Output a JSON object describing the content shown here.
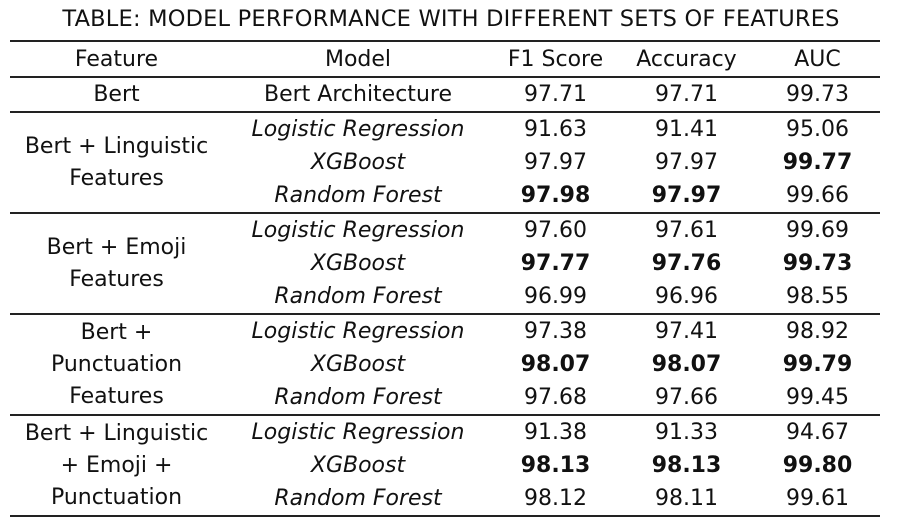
{
  "caption": "TABLE: MODEL PERFORMANCE WITH DIFFERENT SETS OF FEATURES",
  "headers": [
    "Feature",
    "Model",
    "F1 Score",
    "Accuracy",
    "AUC"
  ],
  "groups": [
    {
      "feature": "Bert",
      "rows": [
        {
          "model": "Bert Architecture",
          "f1": "97.71",
          "accuracy": "97.71",
          "auc": "99.73"
        }
      ]
    },
    {
      "feature": "Bert + Linguistic\nFeatures",
      "rows": [
        {
          "model": "Logistic Regression",
          "f1": "91.63",
          "accuracy": "91.41",
          "auc": "95.06"
        },
        {
          "model": "XGBoost",
          "f1": "97.97",
          "accuracy": "97.97",
          "auc": "99.77"
        },
        {
          "model": "Random Forest",
          "f1": "97.98",
          "accuracy": "97.97",
          "auc": "99.66"
        }
      ]
    },
    {
      "feature": "Bert + Emoji\nFeatures",
      "rows": [
        {
          "model": "Logistic Regression",
          "f1": "97.60",
          "accuracy": "97.61",
          "auc": "99.69"
        },
        {
          "model": "XGBoost",
          "f1": "97.77",
          "accuracy": "97.76",
          "auc": "99.73"
        },
        {
          "model": "Random Forest",
          "f1": "96.99",
          "accuracy": "96.96",
          "auc": "98.55"
        }
      ]
    },
    {
      "feature": "Bert +\nPunctuation\nFeatures",
      "rows": [
        {
          "model": "Logistic Regression",
          "f1": "97.38",
          "accuracy": "97.41",
          "auc": "98.92"
        },
        {
          "model": "XGBoost",
          "f1": "98.07",
          "accuracy": "98.07",
          "auc": "99.79"
        },
        {
          "model": "Random Forest",
          "f1": "97.68",
          "accuracy": "97.66",
          "auc": "99.45"
        }
      ]
    },
    {
      "feature": "Bert + Linguistic\n+ Emoji +\nPunctuation",
      "rows": [
        {
          "model": "Logistic Regression",
          "f1": "91.38",
          "accuracy": "91.33",
          "auc": "94.67"
        },
        {
          "model": "XGBoost",
          "f1": "98.13",
          "accuracy": "98.13",
          "auc": "99.80"
        },
        {
          "model": "Random Forest",
          "f1": "98.12",
          "accuracy": "98.11",
          "auc": "99.61"
        }
      ]
    }
  ]
}
